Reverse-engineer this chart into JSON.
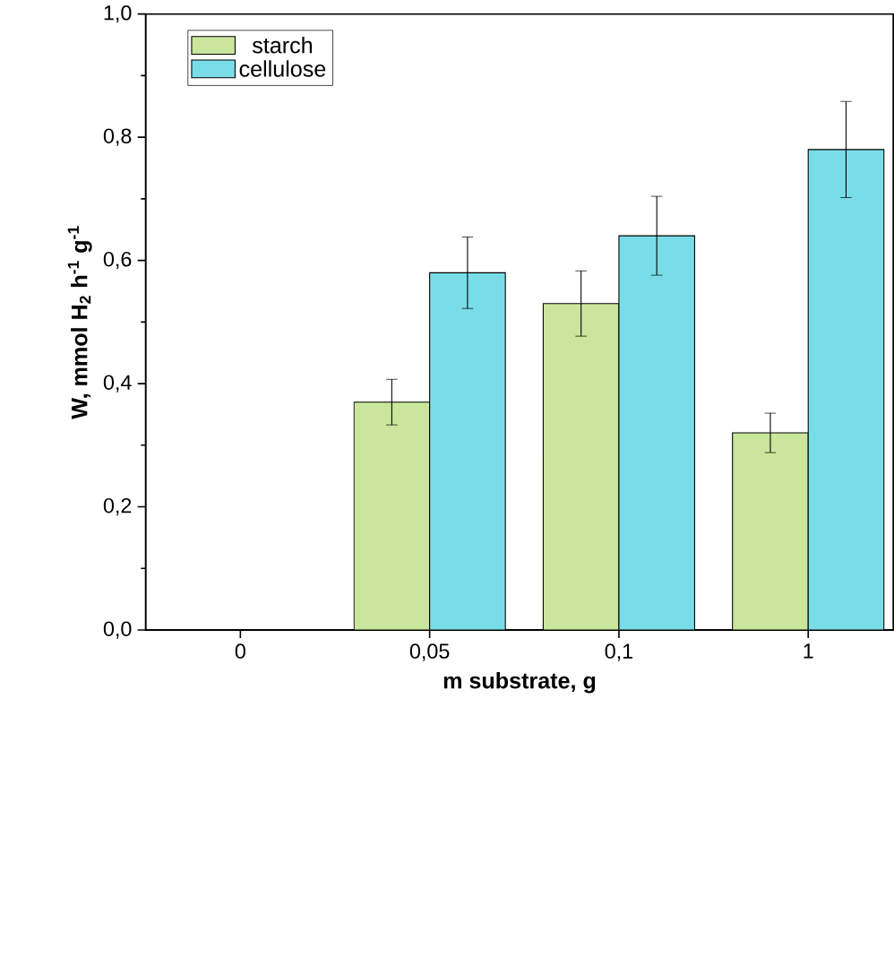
{
  "chart_data": {
    "type": "bar",
    "xlabel": "m substrate, g",
    "ylabel": "W, mmol H$_{2}$ h$^{-1}$ g$^{-1}$",
    "categories": [
      "0",
      "0,05",
      "0,1",
      "1"
    ],
    "series": [
      {
        "name": "starch",
        "color": "#c9e69c",
        "values": [
          null,
          0.37,
          0.53,
          0.32
        ],
        "errors": [
          null,
          0.037,
          0.053,
          0.032
        ]
      },
      {
        "name": "cellulose",
        "color": "#79dde8",
        "values": [
          null,
          0.58,
          0.64,
          0.78
        ],
        "errors": [
          null,
          0.058,
          0.064,
          0.078
        ]
      }
    ],
    "ylim": [
      0,
      1.0
    ],
    "yticks": [
      {
        "value": 0,
        "label": "0,0"
      },
      {
        "value": 0.2,
        "label": "0,2"
      },
      {
        "value": 0.4,
        "label": "0,4"
      },
      {
        "value": 0.6,
        "label": "0,6"
      },
      {
        "value": 0.8,
        "label": "0,8"
      },
      {
        "value": 1.0,
        "label": "1,0"
      }
    ],
    "grid": false,
    "legend": "top left"
  }
}
